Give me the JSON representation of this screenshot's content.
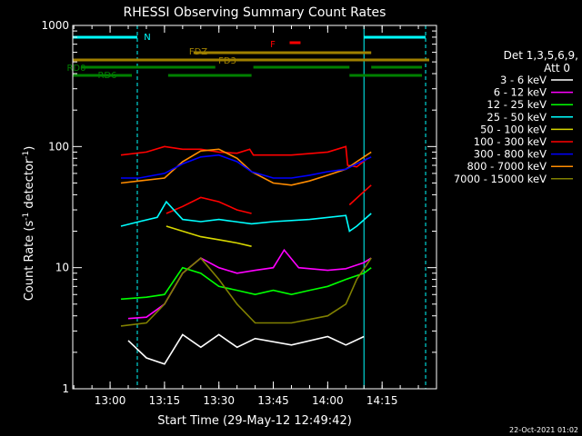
{
  "chart_data": {
    "type": "line",
    "title": "RHESSI Observing Summary Count Rates",
    "xlabel": "Start Time (29-May-12 12:49:42)",
    "ylabel": "Count Rate (s",
    "ylabel_sup": "-1",
    "ylabel_rest": " detector",
    "ylabel_sup2": "-1",
    "ylabel_close": ")",
    "y_scale": "log",
    "ylim": [
      1,
      1000
    ],
    "xlim": [
      "12:49:42",
      "14:30:00"
    ],
    "x_ticks": [
      "13:00",
      "13:15",
      "13:30",
      "13:45",
      "14:00",
      "14:15"
    ],
    "y_ticks": [
      "1",
      "10",
      "100",
      "1000"
    ],
    "legend_header": [
      "Det 1,3,5,6,9,",
      "Att 0"
    ],
    "legend_position": "right",
    "footer_date": "22-Oct-2021 01:02",
    "flags": [
      {
        "label": "N",
        "color": "#00ffff",
        "segments": [
          [
            "12:49:42",
            "13:07:30"
          ],
          [
            "14:10:00",
            "14:27:00"
          ]
        ]
      },
      {
        "label": "F",
        "color": "#ff0000",
        "segments": [
          [
            "13:49:30",
            "13:52:30"
          ]
        ]
      },
      {
        "label": "FDZ",
        "color": "#a08000",
        "segments": [
          [
            "13:23:00",
            "14:12:00"
          ]
        ]
      },
      {
        "label": "FD3",
        "color": "#a08000",
        "segments": [
          [
            "12:49:42",
            "14:28:00"
          ]
        ]
      },
      {
        "label": "RD0",
        "color": "#008000",
        "segments": [
          [
            "12:52:00",
            "13:29:00"
          ],
          [
            "13:39:30",
            "14:06:00"
          ],
          [
            "14:12:00",
            "14:26:00"
          ]
        ]
      },
      {
        "label": "RD6",
        "color": "#008000",
        "segments": [
          [
            "12:49:42",
            "13:06:00"
          ],
          [
            "13:16:00",
            "13:39:00"
          ],
          [
            "14:06:00",
            "14:26:00"
          ]
        ]
      }
    ],
    "series": [
      {
        "name": "3 - 6 keV",
        "color": "#ffffff"
      },
      {
        "name": "6 - 12 keV",
        "color": "#ff00ff"
      },
      {
        "name": "12 - 25 keV",
        "color": "#00ff00"
      },
      {
        "name": "25 - 50 keV",
        "color": "#00ffff"
      },
      {
        "name": "50 - 100 keV",
        "color": "#d8d800"
      },
      {
        "name": "100 - 300 keV",
        "color": "#ff0000"
      },
      {
        "name": "300 - 800 keV",
        "color": "#0000ff"
      },
      {
        "name": "800 - 7000 keV",
        "color": "#ff8c00"
      },
      {
        "name": "7000 - 15000 keV",
        "color": "#808000"
      }
    ],
    "curves": [
      {
        "color": "#ff0000",
        "points": [
          [
            "13:03:00",
            85
          ],
          [
            "13:10:00",
            90
          ],
          [
            "13:15:00",
            100
          ],
          [
            "13:20:00",
            95
          ],
          [
            "13:25:00",
            95
          ],
          [
            "13:30:00",
            90
          ],
          [
            "13:35:00",
            88
          ],
          [
            "13:38:30",
            95
          ],
          [
            "13:39:30",
            85
          ],
          [
            "13:50:00",
            85
          ],
          [
            "14:00:00",
            90
          ],
          [
            "14:05:00",
            100
          ],
          [
            "14:05:30",
            70
          ],
          [
            "14:08:00",
            68
          ],
          [
            "14:11:00",
            80
          ]
        ]
      },
      {
        "color": "#ff8c00",
        "points": [
          [
            "13:03:00",
            50
          ],
          [
            "13:08:00",
            52
          ],
          [
            "13:15:00",
            55
          ],
          [
            "13:20:00",
            75
          ],
          [
            "13:25:00",
            92
          ],
          [
            "13:30:00",
            95
          ],
          [
            "13:35:00",
            80
          ],
          [
            "13:39:00",
            62
          ],
          [
            "13:45:00",
            50
          ],
          [
            "13:50:00",
            48
          ],
          [
            "13:55:00",
            52
          ],
          [
            "14:00:00",
            58
          ],
          [
            "14:05:00",
            65
          ],
          [
            "14:08:00",
            75
          ],
          [
            "14:12:00",
            90
          ]
        ]
      },
      {
        "color": "#0000ff",
        "points": [
          [
            "13:03:00",
            55
          ],
          [
            "13:08:00",
            55
          ],
          [
            "13:15:00",
            60
          ],
          [
            "13:20:00",
            72
          ],
          [
            "13:25:00",
            82
          ],
          [
            "13:30:00",
            85
          ],
          [
            "13:35:00",
            75
          ],
          [
            "13:39:00",
            62
          ],
          [
            "13:45:00",
            55
          ],
          [
            "13:50:00",
            55
          ],
          [
            "13:55:00",
            58
          ],
          [
            "14:00:00",
            62
          ],
          [
            "14:05:00",
            65
          ],
          [
            "14:08:00",
            72
          ],
          [
            "14:12:00",
            82
          ]
        ]
      },
      {
        "color": "#ff0000",
        "points": [
          [
            "13:15:30",
            28
          ],
          [
            "13:20:00",
            32
          ],
          [
            "13:25:00",
            38
          ],
          [
            "13:30:00",
            35
          ],
          [
            "13:35:00",
            30
          ],
          [
            "13:39:00",
            28
          ]
        ]
      },
      {
        "color": "#ff0000",
        "points": [
          [
            "14:06:00",
            33
          ],
          [
            "14:09:00",
            40
          ],
          [
            "14:12:00",
            48
          ]
        ]
      },
      {
        "color": "#00ffff",
        "points": [
          [
            "13:03:00",
            22
          ],
          [
            "13:08:00",
            24
          ],
          [
            "13:13:00",
            26
          ],
          [
            "13:15:30",
            35
          ],
          [
            "13:20:00",
            25
          ],
          [
            "13:25:00",
            24
          ],
          [
            "13:30:00",
            25
          ],
          [
            "13:39:00",
            23
          ],
          [
            "13:45:00",
            24
          ],
          [
            "13:55:00",
            25
          ],
          [
            "14:05:00",
            27
          ],
          [
            "14:06:00",
            20
          ],
          [
            "14:08:00",
            22
          ],
          [
            "14:12:00",
            28
          ]
        ]
      },
      {
        "color": "#d8d800",
        "points": [
          [
            "13:15:30",
            22
          ],
          [
            "13:20:00",
            20
          ],
          [
            "13:25:00",
            18
          ],
          [
            "13:30:00",
            17
          ],
          [
            "13:35:00",
            16
          ],
          [
            "13:39:00",
            15
          ]
        ]
      },
      {
        "color": "#ff00ff",
        "points": [
          [
            "13:05:00",
            3.8
          ],
          [
            "13:10:00",
            3.9
          ],
          [
            "13:15:00",
            5
          ],
          [
            "13:20:00",
            9
          ],
          [
            "13:25:00",
            12
          ],
          [
            "13:30:00",
            10
          ],
          [
            "13:35:00",
            9
          ],
          [
            "13:40:00",
            9.5
          ],
          [
            "13:45:00",
            10
          ],
          [
            "13:48:00",
            14
          ],
          [
            "13:52:00",
            10
          ],
          [
            "14:00:00",
            9.5
          ],
          [
            "14:05:00",
            9.8
          ],
          [
            "14:10:00",
            11
          ],
          [
            "14:12:00",
            12
          ]
        ]
      },
      {
        "color": "#00ff00",
        "points": [
          [
            "13:03:00",
            5.5
          ],
          [
            "13:10:00",
            5.7
          ],
          [
            "13:15:00",
            6
          ],
          [
            "13:20:00",
            10
          ],
          [
            "13:25:00",
            9
          ],
          [
            "13:30:00",
            7
          ],
          [
            "13:35:00",
            6.5
          ],
          [
            "13:40:00",
            6
          ],
          [
            "13:45:00",
            6.5
          ],
          [
            "13:50:00",
            6
          ],
          [
            "13:55:00",
            6.5
          ],
          [
            "14:00:00",
            7
          ],
          [
            "14:05:00",
            8
          ],
          [
            "14:10:00",
            9
          ],
          [
            "14:12:00",
            10
          ]
        ]
      },
      {
        "color": "#808000",
        "points": [
          [
            "13:03:00",
            3.3
          ],
          [
            "13:10:00",
            3.5
          ],
          [
            "13:15:00",
            5
          ],
          [
            "13:20:00",
            9
          ],
          [
            "13:25:00",
            12
          ],
          [
            "13:30:00",
            8
          ],
          [
            "13:35:00",
            5
          ],
          [
            "13:40:00",
            3.5
          ],
          [
            "13:50:00",
            3.5
          ],
          [
            "14:00:00",
            4
          ],
          [
            "14:05:00",
            5
          ],
          [
            "14:08:00",
            8
          ],
          [
            "14:12:00",
            12
          ]
        ]
      },
      {
        "color": "#ffffff",
        "points": [
          [
            "13:05:00",
            2.5
          ],
          [
            "13:10:00",
            1.8
          ],
          [
            "13:15:00",
            1.6
          ],
          [
            "13:20:00",
            2.8
          ],
          [
            "13:25:00",
            2.2
          ],
          [
            "13:30:00",
            2.8
          ],
          [
            "13:35:00",
            2.2
          ],
          [
            "13:40:00",
            2.6
          ],
          [
            "13:50:00",
            2.3
          ],
          [
            "14:00:00",
            2.7
          ],
          [
            "14:05:00",
            2.3
          ],
          [
            "14:10:00",
            2.7
          ]
        ]
      }
    ],
    "vlines": [
      {
        "color": "#00ffff",
        "x": "12:49:42",
        "style": "solid"
      },
      {
        "color": "#00ffff",
        "x": "13:07:30",
        "style": "dashed"
      },
      {
        "color": "#00ffff",
        "x": "14:10:00",
        "style": "solid"
      },
      {
        "color": "#00ffff",
        "x": "14:27:00",
        "style": "dashed"
      }
    ]
  }
}
